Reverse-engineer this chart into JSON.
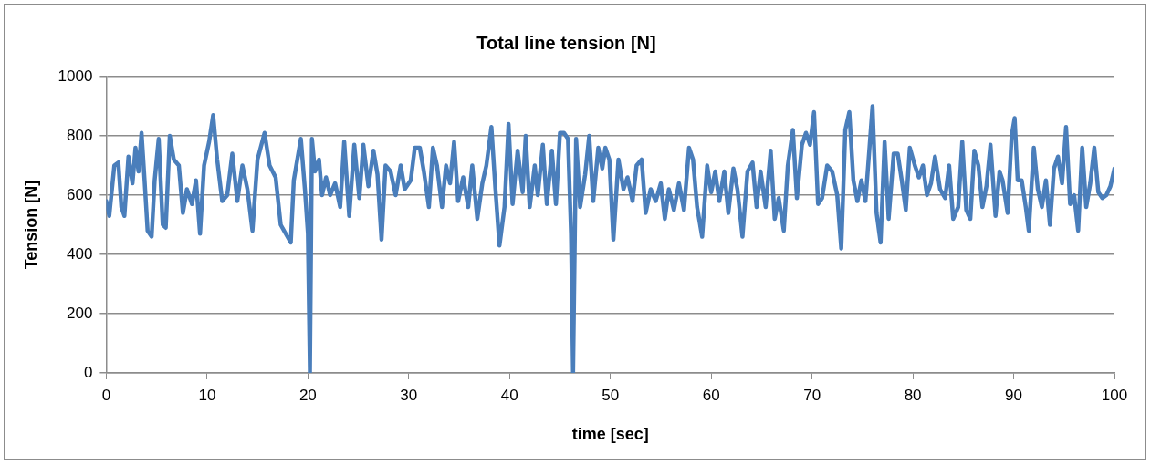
{
  "chart_data": {
    "type": "line",
    "title": "Total line tension [N]",
    "xlabel": "time [sec]",
    "ylabel": "Tension [N]",
    "xlim": [
      0,
      100
    ],
    "xticks": [
      0,
      10,
      20,
      30,
      40,
      50,
      60,
      70,
      80,
      90,
      100
    ],
    "ylim": [
      0,
      1000
    ],
    "yticks": [
      0,
      200,
      400,
      600,
      800,
      1000
    ],
    "grid": "y",
    "legend": false,
    "marker": "none",
    "line_style": "solid",
    "series": [
      {
        "color": "#4a7ebb",
        "x": [
          0,
          0.3,
          0.8,
          1.2,
          1.5,
          1.8,
          2.2,
          2.6,
          2.9,
          3.2,
          3.5,
          3.8,
          4.1,
          4.5,
          4.8,
          5.2,
          5.6,
          5.9,
          6.3,
          6.7,
          7.2,
          7.6,
          8,
          8.5,
          8.9,
          9.3,
          9.7,
          10.2,
          10.6,
          11,
          11.5,
          12,
          12.5,
          13,
          13.5,
          14,
          14.5,
          15,
          15.7,
          16.2,
          16.8,
          17.3,
          17.8,
          18.3,
          18.6,
          19.3,
          19.7,
          20,
          20.2,
          20.4,
          20.7,
          21.1,
          21.4,
          21.8,
          22.2,
          22.7,
          23.2,
          23.6,
          24.1,
          24.6,
          25.1,
          25.5,
          26,
          26.5,
          26.9,
          27.3,
          27.7,
          28.2,
          28.7,
          29.2,
          29.6,
          30.2,
          30.6,
          31.1,
          31.5,
          32,
          32.4,
          32.8,
          33.3,
          33.7,
          34.1,
          34.5,
          34.9,
          35.4,
          35.9,
          36.3,
          36.8,
          37.3,
          37.7,
          38.2,
          38.6,
          39,
          39.5,
          39.9,
          40.3,
          40.8,
          41.3,
          41.6,
          42,
          42.5,
          42.8,
          43.3,
          43.7,
          44.2,
          44.6,
          45,
          45.4,
          45.8,
          46.1,
          46.3,
          46.6,
          47,
          47.5,
          47.9,
          48.3,
          48.8,
          49.2,
          49.5,
          49.9,
          50.3,
          50.8,
          51.3,
          51.7,
          52.2,
          52.6,
          53.1,
          53.5,
          54,
          54.5,
          55,
          55.4,
          55.8,
          56.3,
          56.8,
          57.3,
          57.8,
          58.2,
          58.6,
          59.1,
          59.6,
          60,
          60.4,
          60.8,
          61.3,
          61.7,
          62.2,
          62.6,
          63.1,
          63.6,
          64.1,
          64.5,
          64.9,
          65.4,
          65.9,
          66.3,
          66.7,
          67.2,
          67.6,
          68.1,
          68.5,
          69,
          69.4,
          69.8,
          70.2,
          70.6,
          71,
          71.5,
          72,
          72.5,
          72.9,
          73.3,
          73.7,
          74.1,
          74.5,
          74.9,
          75.3,
          75.7,
          76,
          76.4,
          76.8,
          77.2,
          77.6,
          78.1,
          78.5,
          78.9,
          79.3,
          79.7,
          80.2,
          80.6,
          81,
          81.4,
          81.8,
          82.2,
          82.7,
          83.2,
          83.6,
          84,
          84.5,
          84.9,
          85.3,
          85.7,
          86.1,
          86.5,
          86.9,
          87.3,
          87.7,
          88.2,
          88.6,
          88.9,
          89.4,
          89.8,
          90.1,
          90.4,
          90.8,
          91.2,
          91.5,
          92,
          92.4,
          92.8,
          93.2,
          93.6,
          94,
          94.4,
          94.8,
          95.2,
          95.6,
          96,
          96.4,
          96.8,
          97.2,
          97.6,
          98,
          98.4,
          98.8,
          99.2,
          99.6,
          100
        ],
        "values": [
          580,
          530,
          700,
          710,
          560,
          530,
          730,
          640,
          760,
          680,
          810,
          650,
          480,
          460,
          650,
          790,
          500,
          490,
          800,
          720,
          700,
          540,
          620,
          570,
          650,
          470,
          700,
          780,
          870,
          720,
          580,
          600,
          740,
          580,
          700,
          620,
          480,
          720,
          810,
          700,
          660,
          500,
          470,
          440,
          650,
          790,
          620,
          470,
          0,
          790,
          680,
          720,
          600,
          660,
          600,
          640,
          560,
          780,
          530,
          770,
          590,
          770,
          630,
          750,
          670,
          450,
          700,
          680,
          600,
          700,
          620,
          650,
          760,
          760,
          680,
          560,
          760,
          700,
          560,
          700,
          640,
          780,
          580,
          660,
          560,
          700,
          520,
          640,
          700,
          830,
          620,
          430,
          560,
          840,
          570,
          750,
          610,
          800,
          560,
          700,
          600,
          770,
          570,
          750,
          570,
          810,
          810,
          790,
          470,
          0,
          790,
          560,
          670,
          800,
          580,
          760,
          690,
          760,
          720,
          450,
          720,
          620,
          660,
          580,
          700,
          720,
          540,
          620,
          580,
          640,
          520,
          620,
          550,
          640,
          550,
          760,
          720,
          560,
          460,
          700,
          610,
          680,
          580,
          680,
          540,
          690,
          620,
          460,
          680,
          710,
          560,
          680,
          560,
          750,
          520,
          590,
          480,
          700,
          820,
          590,
          770,
          810,
          770,
          880,
          570,
          590,
          700,
          680,
          600,
          420,
          820,
          880,
          650,
          580,
          650,
          580,
          760,
          900,
          540,
          440,
          780,
          520,
          740,
          740,
          650,
          550,
          760,
          700,
          660,
          700,
          600,
          640,
          730,
          620,
          590,
          700,
          520,
          560,
          780,
          550,
          520,
          750,
          700,
          560,
          630,
          770,
          530,
          680,
          650,
          540,
          800,
          860,
          650,
          650,
          560,
          480,
          760,
          620,
          560,
          650,
          500,
          690,
          730,
          640,
          830,
          570,
          600,
          480,
          760,
          560,
          640,
          760,
          610,
          590,
          600,
          630,
          690
        ]
      }
    ]
  }
}
